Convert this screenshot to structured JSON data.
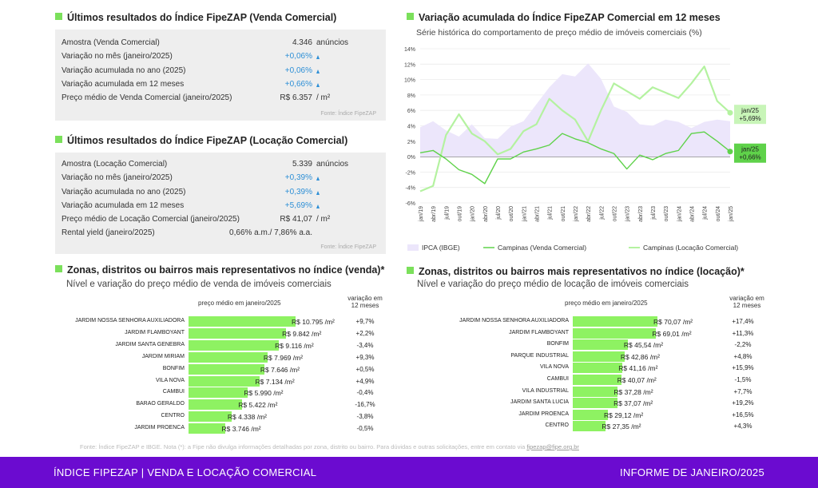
{
  "venda": {
    "title": "Últimos resultados do Índice FipeZAP (Venda Comercial)",
    "rows": [
      {
        "label": "Amostra (Venda Comercial)",
        "value": "4.346",
        "unit": "anúncios",
        "up": false
      },
      {
        "label": "Variação no mês (janeiro/2025)",
        "value": "+0,06%",
        "unit": "",
        "up": true
      },
      {
        "label": "Variação acumulada no ano (2025)",
        "value": "+0,06%",
        "unit": "",
        "up": true
      },
      {
        "label": "Variação acumulada em 12 meses",
        "value": "+0,66%",
        "unit": "",
        "up": true
      },
      {
        "label": "Preço médio de Venda Comercial (janeiro/2025)",
        "value": "R$ 6.357",
        "unit": "/ m²",
        "up": false
      }
    ],
    "source": "Fonte: Índice FipeZAP"
  },
  "locacao": {
    "title": "Últimos resultados do Índice FipeZAP (Locação Comercial)",
    "rows": [
      {
        "label": "Amostra (Locação Comercial)",
        "value": "5.339",
        "unit": "anúncios",
        "up": false
      },
      {
        "label": "Variação no mês (janeiro/2025)",
        "value": "+0,39%",
        "unit": "",
        "up": true
      },
      {
        "label": "Variação acumulada no ano (2025)",
        "value": "+0,39%",
        "unit": "",
        "up": true
      },
      {
        "label": "Variação acumulada em 12 meses",
        "value": "+5,69%",
        "unit": "",
        "up": true
      },
      {
        "label": "Preço médio de Locação Comercial (janeiro/2025)",
        "value": "R$ 41,07",
        "unit": "/ m²",
        "up": false
      },
      {
        "label": "Rental yield (janeiro/2025)",
        "value": "0,66% a.m./ 7,86% a.a.",
        "unit": "",
        "up": false
      }
    ],
    "source": "Fonte: Índice FipeZAP"
  },
  "line_chart": {
    "title": "Variação acumulada do Índice FipeZAP Comercial em 12 meses",
    "subtitle": "Série histórica do comportamento de preço médio de imóveis comerciais (%)",
    "end_labels": {
      "locacao": [
        "jan/25",
        "+5,69%"
      ],
      "venda": [
        "jan/25",
        "+0,66%"
      ]
    }
  },
  "zonas_venda": {
    "title": "Zonas, distritos ou bairros mais representativos no índice (venda)*",
    "subtitle": "Nível e variação do preço médio de venda de imóveis comerciais",
    "col_price": "preço médio em janeiro/2025",
    "col_var": [
      "variação em",
      "12 meses"
    ],
    "items": [
      {
        "name": "JARDIM NOSSA SENHORA AUXILIADORA",
        "price": "R$ 10.795 /m²",
        "value": 10795,
        "var": "+9,7%"
      },
      {
        "name": "JARDIM FLAMBOYANT",
        "price": "R$ 9.842 /m²",
        "value": 9842,
        "var": "+2,2%"
      },
      {
        "name": "JARDIM SANTA GENEBRA",
        "price": "R$ 9.116 /m²",
        "value": 9116,
        "var": "-3,4%"
      },
      {
        "name": "JARDIM MIRIAM",
        "price": "R$ 7.969 /m²",
        "value": 7969,
        "var": "+9,3%"
      },
      {
        "name": "BONFIM",
        "price": "R$ 7.646 /m²",
        "value": 7646,
        "var": "+0,5%"
      },
      {
        "name": "VILA NOVA",
        "price": "R$ 7.134 /m²",
        "value": 7134,
        "var": "+4,9%"
      },
      {
        "name": "CAMBUI",
        "price": "R$ 5.990 /m²",
        "value": 5990,
        "var": "-0,4%"
      },
      {
        "name": "BARAO GERALDO",
        "price": "R$ 5.422 /m²",
        "value": 5422,
        "var": "-16,7%"
      },
      {
        "name": "CENTRO",
        "price": "R$ 4.338 /m²",
        "value": 4338,
        "var": "-3,8%"
      },
      {
        "name": "JARDIM PROENCA",
        "price": "R$ 3.746 /m²",
        "value": 3746,
        "var": "-0,5%"
      }
    ]
  },
  "zonas_locacao": {
    "title": "Zonas, distritos ou bairros mais representativos no índice (locação)*",
    "subtitle": "Nível e variação do preço médio de locação de imóveis comerciais",
    "col_price": "preço médio em janeiro/2025",
    "col_var": [
      "variação em",
      "12 meses"
    ],
    "items": [
      {
        "name": "JARDIM NOSSA SENHORA AUXILIADORA",
        "price": "R$ 70,07 /m²",
        "value": 70.07,
        "var": "+17,4%"
      },
      {
        "name": "JARDIM FLAMBOYANT",
        "price": "R$ 69,01 /m²",
        "value": 69.01,
        "var": "+11,3%"
      },
      {
        "name": "BONFIM",
        "price": "R$ 45,54 /m²",
        "value": 45.54,
        "var": "-2,2%"
      },
      {
        "name": "PARQUE INDUSTRIAL",
        "price": "R$ 42,86 /m²",
        "value": 42.86,
        "var": "+4,8%"
      },
      {
        "name": "VILA NOVA",
        "price": "R$ 41,16 /m²",
        "value": 41.16,
        "var": "+15,9%"
      },
      {
        "name": "CAMBUI",
        "price": "R$ 40,07 /m²",
        "value": 40.07,
        "var": "-1,5%"
      },
      {
        "name": "VILA INDUSTRIAL",
        "price": "R$ 37,28 /m²",
        "value": 37.28,
        "var": "+7,7%"
      },
      {
        "name": "JARDIM SANTA LUCIA",
        "price": "R$ 37,07 /m²",
        "value": 37.07,
        "var": "+19,2%"
      },
      {
        "name": "JARDIM PROENCA",
        "price": "R$ 29,12 /m²",
        "value": 29.12,
        "var": "+16,5%"
      },
      {
        "name": "CENTRO",
        "price": "R$ 27,35 /m²",
        "value": 27.35,
        "var": "+4,3%"
      }
    ]
  },
  "footnote": {
    "text": "Fonte: Índice FipeZAP e IBGE. Nota (*): a Fipe não divulga informações detalhadas por zona, distrito ou bairro. Para dúvidas e outras solicitações, entre em contato via ",
    "email": "fipezap@fipe.org.br"
  },
  "footer": {
    "left": "ÍNDICE FIPEZAP | VENDA E LOCAÇÃO COMERCIAL",
    "right": "INFORME DE JANEIRO/2025"
  },
  "colors": {
    "accent_green": "#7be05b",
    "bar_green": "#8ef262",
    "ipca_fill": "#ece6fb",
    "venda_line": "#5fd24a",
    "locacao_line": "#b4f2a0",
    "blue_value": "#2d8fd6",
    "footer_purple": "#6b0bd0"
  },
  "chart_data": [
    {
      "type": "line",
      "title": "Variação acumulada do Índice FipeZAP Comercial em 12 meses",
      "subtitle": "Série histórica do comportamento de preço médio de imóveis comerciais (%)",
      "x_ticks": [
        "jan/19",
        "abr/19",
        "jul/19",
        "out/19",
        "jan/20",
        "abr/20",
        "jul/20",
        "out/20",
        "jan/21",
        "abr/21",
        "jul/21",
        "out/21",
        "jan/22",
        "abr/22",
        "jul/22",
        "out/22",
        "jan/23",
        "abr/23",
        "jul/23",
        "out/23",
        "jan/24",
        "abr/24",
        "jul/24",
        "out/24",
        "jan/25"
      ],
      "y_ticks": [
        "14%",
        "12%",
        "10%",
        "8%",
        "6%",
        "4%",
        "2%",
        "0%",
        "-2%",
        "-4%",
        "-6%"
      ],
      "ylim": [
        -6,
        14
      ],
      "grid": true,
      "legend_position": "bottom",
      "series": [
        {
          "name": "IPCA (IBGE)",
          "style": "area",
          "values": [
            3.8,
            4.6,
            3.4,
            2.6,
            4.2,
            2.4,
            2.3,
            3.9,
            4.6,
            6.8,
            9.0,
            10.7,
            10.4,
            12.1,
            10.1,
            6.5,
            5.8,
            4.2,
            4.0,
            4.8,
            4.5,
            3.7,
            4.5,
            4.8,
            4.6
          ]
        },
        {
          "name": "Campinas (Venda Comercial)",
          "style": "line",
          "values": [
            0.5,
            0.8,
            -0.3,
            -1.7,
            -2.3,
            -3.5,
            -0.3,
            -0.3,
            0.6,
            1.0,
            1.5,
            3.0,
            2.3,
            1.8,
            1.0,
            0.4,
            -1.6,
            0.2,
            -0.4,
            0.4,
            0.8,
            3.0,
            3.2,
            2.0,
            0.66
          ]
        },
        {
          "name": "Campinas (Locação Comercial)",
          "style": "line",
          "values": [
            -4.5,
            -3.8,
            2.8,
            5.5,
            3.0,
            2.0,
            0.3,
            1.0,
            3.3,
            4.2,
            7.5,
            6.0,
            4.8,
            2.0,
            6.0,
            9.5,
            8.5,
            7.5,
            9.0,
            8.3,
            7.6,
            9.5,
            11.7,
            7.2,
            5.69
          ]
        }
      ]
    },
    {
      "type": "bar",
      "title": "Zonas, distritos ou bairros mais representativos no índice (venda)*",
      "orientation": "horizontal",
      "categories": [
        "JARDIM NOSSA SENHORA AUXILIADORA",
        "JARDIM FLAMBOYANT",
        "JARDIM SANTA GENEBRA",
        "JARDIM MIRIAM",
        "BONFIM",
        "VILA NOVA",
        "CAMBUI",
        "BARAO GERALDO",
        "CENTRO",
        "JARDIM PROENCA"
      ],
      "values": [
        10795,
        9842,
        9116,
        7969,
        7646,
        7134,
        5990,
        5422,
        4338,
        3746
      ]
    },
    {
      "type": "bar",
      "title": "Zonas, distritos ou bairros mais representativos no índice (locação)*",
      "orientation": "horizontal",
      "categories": [
        "JARDIM NOSSA SENHORA AUXILIADORA",
        "JARDIM FLAMBOYANT",
        "BONFIM",
        "PARQUE INDUSTRIAL",
        "VILA NOVA",
        "CAMBUI",
        "VILA INDUSTRIAL",
        "JARDIM SANTA LUCIA",
        "JARDIM PROENCA",
        "CENTRO"
      ],
      "values": [
        70.07,
        69.01,
        45.54,
        42.86,
        41.16,
        40.07,
        37.28,
        37.07,
        29.12,
        27.35
      ]
    }
  ]
}
